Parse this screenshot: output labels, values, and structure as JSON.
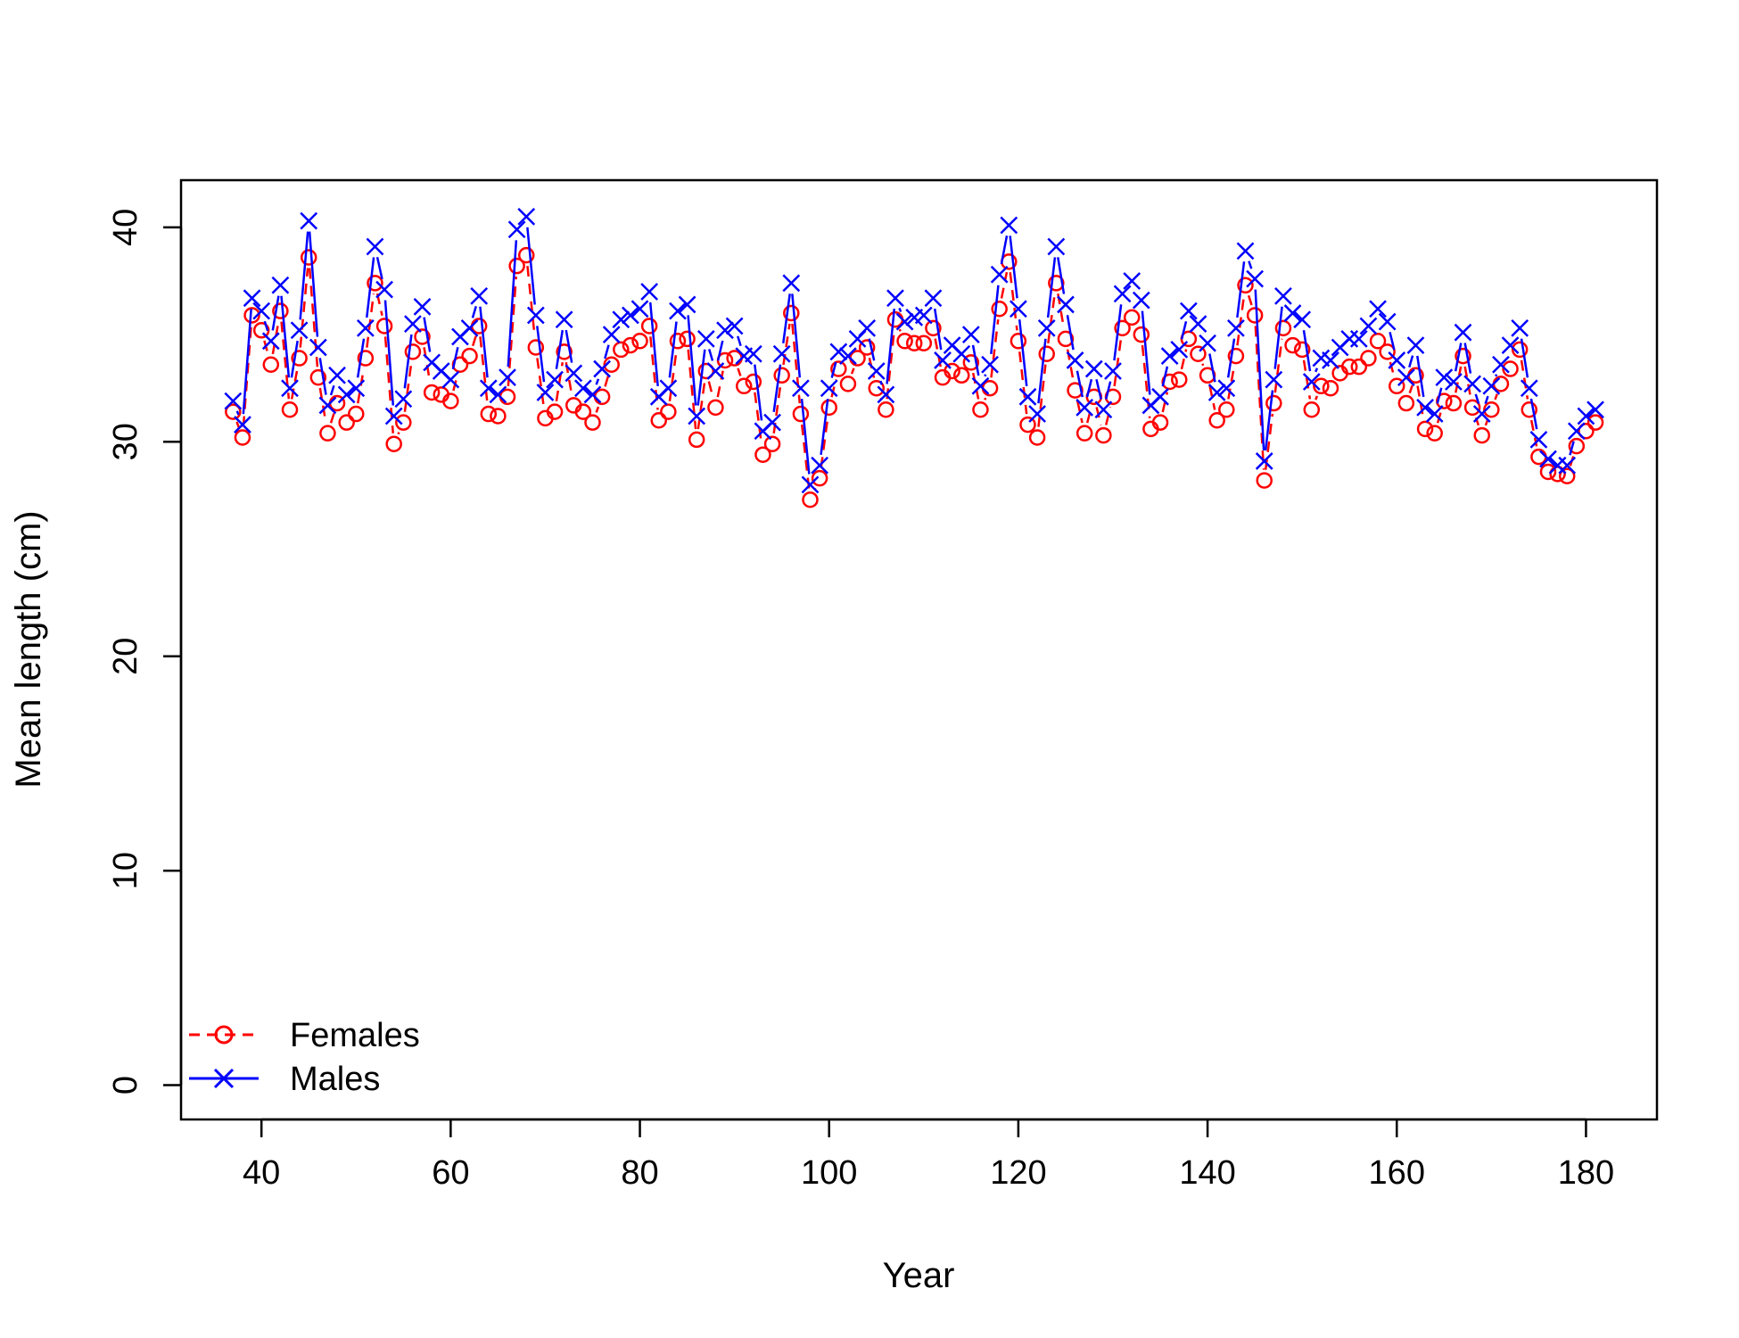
{
  "chart_data": {
    "type": "line",
    "title": "",
    "xlabel": "Year",
    "ylabel": "Mean length (cm)",
    "xlim": [
      31.5,
      187.5
    ],
    "ylim": [
      -1.6,
      42.2
    ],
    "xticks": [
      40,
      60,
      80,
      100,
      120,
      140,
      160,
      180
    ],
    "yticks": [
      0,
      10,
      20,
      30,
      40
    ],
    "grid": false,
    "legend_position": "bottom-left",
    "x_start": 37,
    "x": [
      37,
      38,
      39,
      40,
      41,
      42,
      43,
      44,
      45,
      46,
      47,
      48,
      49,
      50,
      51,
      52,
      53,
      54,
      55,
      56,
      57,
      58,
      59,
      60,
      61,
      62,
      63,
      64,
      65,
      66,
      67,
      68,
      69,
      70,
      71,
      72,
      73,
      74,
      75,
      76,
      77,
      78,
      79,
      80,
      81,
      82,
      83,
      84,
      85,
      86,
      87,
      88,
      89,
      90,
      91,
      92,
      93,
      94,
      95,
      96,
      97,
      98,
      99,
      100,
      101,
      102,
      103,
      104,
      105,
      106,
      107,
      108,
      109,
      110,
      111,
      112,
      113,
      114,
      115,
      116,
      117,
      118,
      119,
      120,
      121,
      122,
      123,
      124,
      125,
      126,
      127,
      128,
      129,
      130,
      131,
      132,
      133,
      134,
      135,
      136,
      137,
      138,
      139,
      140,
      141,
      142,
      143,
      144,
      145,
      146,
      147,
      148,
      149,
      150,
      151,
      152,
      153,
      154,
      155,
      156,
      157,
      158,
      159,
      160,
      161,
      162,
      163,
      164,
      165,
      166,
      167,
      168,
      169,
      170,
      171,
      172,
      173,
      174,
      175,
      176,
      177,
      178,
      179,
      180,
      181
    ],
    "series": [
      {
        "name": "Females",
        "color": "#ff0000",
        "line": "dashed",
        "marker": "circle",
        "values": [
          31.4,
          30.2,
          35.9,
          35.2,
          33.6,
          36.1,
          31.5,
          33.9,
          38.6,
          33.0,
          30.4,
          31.8,
          30.9,
          31.3,
          33.9,
          37.4,
          35.4,
          29.9,
          30.9,
          34.2,
          34.9,
          32.3,
          32.2,
          31.9,
          33.6,
          34.0,
          35.4,
          31.3,
          31.2,
          32.1,
          38.2,
          38.7,
          34.4,
          31.1,
          31.4,
          34.2,
          31.7,
          31.4,
          30.9,
          32.1,
          33.6,
          34.3,
          34.5,
          34.7,
          35.4,
          31.0,
          31.4,
          34.7,
          34.8,
          30.1,
          33.3,
          31.6,
          33.8,
          33.9,
          32.6,
          32.8,
          29.4,
          29.9,
          33.1,
          36.0,
          31.3,
          27.3,
          28.3,
          31.6,
          33.4,
          32.7,
          33.9,
          34.4,
          32.5,
          31.5,
          35.7,
          34.7,
          34.6,
          34.6,
          35.3,
          33.0,
          33.3,
          33.1,
          33.7,
          31.5,
          32.5,
          36.2,
          38.4,
          34.7,
          30.8,
          30.2,
          34.1,
          37.4,
          34.8,
          32.4,
          30.4,
          32.1,
          30.3,
          32.1,
          35.3,
          35.8,
          35.0,
          30.6,
          30.9,
          32.8,
          32.9,
          34.8,
          34.1,
          33.1,
          31.0,
          31.5,
          34.0,
          37.3,
          35.9,
          28.2,
          31.8,
          35.3,
          34.5,
          34.3,
          31.5,
          32.6,
          32.5,
          33.2,
          33.5,
          33.5,
          33.9,
          34.7,
          34.2,
          32.6,
          31.8,
          33.1,
          30.6,
          30.4,
          31.9,
          31.8,
          34.0,
          31.6,
          30.3,
          31.5,
          32.7,
          33.4,
          34.3,
          31.5,
          29.3,
          28.6,
          28.5,
          28.4,
          29.8,
          30.5,
          30.9
        ]
      },
      {
        "name": "Males",
        "color": "#0000ff",
        "line": "solid",
        "marker": "x",
        "values": [
          31.9,
          30.8,
          36.7,
          36.1,
          34.7,
          37.3,
          32.5,
          35.2,
          40.3,
          34.4,
          31.7,
          33.1,
          32.2,
          32.5,
          35.3,
          39.1,
          37.1,
          31.2,
          32.0,
          35.5,
          36.3,
          33.7,
          33.3,
          32.9,
          34.9,
          35.3,
          36.8,
          32.5,
          32.2,
          33.0,
          39.9,
          40.5,
          35.9,
          32.3,
          32.9,
          35.7,
          33.2,
          32.5,
          32.2,
          33.4,
          35.0,
          35.7,
          35.9,
          36.2,
          37.0,
          32.1,
          32.5,
          36.1,
          36.4,
          31.2,
          34.8,
          33.3,
          35.2,
          35.4,
          34.0,
          34.1,
          30.5,
          30.9,
          34.1,
          37.4,
          32.5,
          28.0,
          28.9,
          32.5,
          34.2,
          34.0,
          34.8,
          35.3,
          33.3,
          32.2,
          36.7,
          35.6,
          35.8,
          35.9,
          36.7,
          33.8,
          34.5,
          34.1,
          35.0,
          32.6,
          33.6,
          37.8,
          40.1,
          36.2,
          32.1,
          31.3,
          35.3,
          39.1,
          36.4,
          33.8,
          31.6,
          33.4,
          31.5,
          33.3,
          36.9,
          37.5,
          36.6,
          31.7,
          32.1,
          34.0,
          34.3,
          36.1,
          35.5,
          34.6,
          32.3,
          32.5,
          35.3,
          38.9,
          37.6,
          29.1,
          32.9,
          36.8,
          36.0,
          35.7,
          32.8,
          33.9,
          33.8,
          34.4,
          34.8,
          34.8,
          35.4,
          36.2,
          35.6,
          33.8,
          33.0,
          34.5,
          31.6,
          31.3,
          33.0,
          32.8,
          35.1,
          32.7,
          31.3,
          32.6,
          33.6,
          34.5,
          35.3,
          32.5,
          30.1,
          29.2,
          28.9,
          28.9,
          30.5,
          31.2,
          31.5
        ]
      }
    ]
  }
}
